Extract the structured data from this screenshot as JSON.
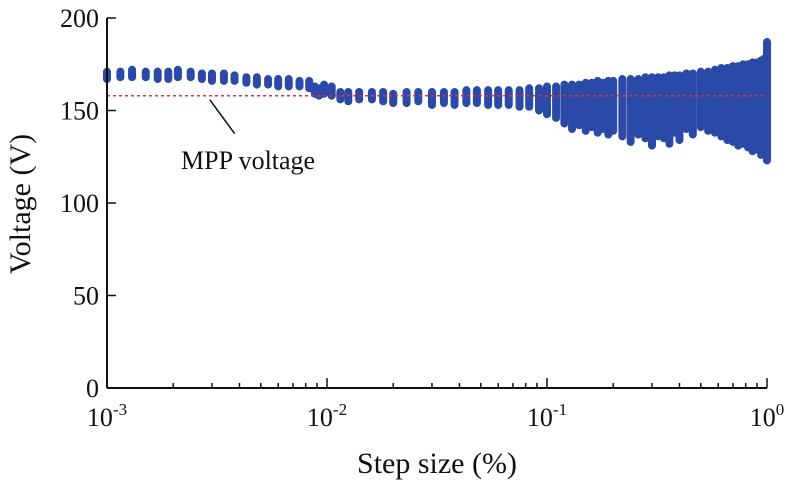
{
  "chart_data": {
    "type": "scatter",
    "title": "",
    "xlabel": "Step size (%)",
    "ylabel": "Voltage (V)",
    "x_scale": "log",
    "xlim": [
      0.001,
      1
    ],
    "ylim": [
      0,
      200
    ],
    "x_ticks": [
      {
        "value": 0.001,
        "base": "10",
        "exp": "-3"
      },
      {
        "value": 0.01,
        "base": "10",
        "exp": "-2"
      },
      {
        "value": 0.1,
        "base": "10",
        "exp": "-1"
      },
      {
        "value": 1,
        "base": "10",
        "exp": "0"
      }
    ],
    "y_ticks": [
      {
        "value": 0,
        "label": "0"
      },
      {
        "value": 50,
        "label": "50"
      },
      {
        "value": 100,
        "label": "100"
      },
      {
        "value": 150,
        "label": "150"
      },
      {
        "value": 200,
        "label": "200"
      }
    ],
    "grid": false,
    "colors": {
      "series": "#2b4aa8",
      "reference": "#e0303a",
      "axis": "#111111"
    },
    "series": [
      {
        "x": [
          0.001,
          0.00115,
          0.0013,
          0.0015,
          0.0017,
          0.0019,
          0.0021,
          0.0024,
          0.0027,
          0.003,
          0.0034,
          0.0038,
          0.0043,
          0.0048,
          0.0054,
          0.006,
          0.0067,
          0.0075,
          0.0083,
          0.0088,
          0.0092,
          0.0097,
          0.0105,
          0.0115,
          0.0125,
          0.014,
          0.016,
          0.018,
          0.02,
          0.023,
          0.026,
          0.03,
          0.034,
          0.038,
          0.043,
          0.048,
          0.054,
          0.06,
          0.067,
          0.075,
          0.083,
          0.092,
          0.1,
          0.11,
          0.12,
          0.13,
          0.14,
          0.15,
          0.16,
          0.17,
          0.18,
          0.19,
          0.2,
          0.22,
          0.24,
          0.26,
          0.28,
          0.3,
          0.32,
          0.34,
          0.36,
          0.38,
          0.4,
          0.43,
          0.46,
          0.5,
          0.54,
          0.58,
          0.62,
          0.66,
          0.7,
          0.74,
          0.78,
          0.82,
          0.86,
          0.9,
          0.94,
          0.97,
          1.0
        ],
        "y_min": [
          167,
          168,
          168,
          168,
          167,
          167,
          168,
          168,
          167,
          166,
          166,
          166,
          165,
          164,
          164,
          163,
          163,
          163,
          162,
          159,
          158,
          159,
          158,
          156,
          155,
          156,
          156,
          155,
          154,
          154,
          155,
          153,
          154,
          153,
          154,
          154,
          153,
          153,
          153,
          152,
          152,
          150,
          148,
          146,
          143,
          140,
          142,
          139,
          141,
          138,
          140,
          137,
          139,
          136,
          133,
          137,
          135,
          131,
          136,
          135,
          132,
          138,
          134,
          140,
          137,
          141,
          139,
          138,
          136,
          134,
          133,
          131,
          132,
          130,
          128,
          129,
          126,
          127,
          123
        ],
        "y_max": [
          171,
          171,
          172,
          171,
          171,
          171,
          172,
          171,
          170,
          170,
          170,
          169,
          168,
          168,
          167,
          167,
          167,
          166,
          166,
          163,
          162,
          164,
          163,
          160,
          160,
          160,
          160,
          160,
          159,
          160,
          160,
          160,
          160,
          160,
          161,
          161,
          161,
          161,
          161,
          161,
          162,
          162,
          163,
          163,
          164,
          164,
          164,
          165,
          165,
          166,
          165,
          166,
          166,
          167,
          167,
          167,
          168,
          168,
          168,
          168,
          169,
          169,
          169,
          170,
          170,
          171,
          171,
          172,
          173,
          173,
          174,
          174,
          175,
          175,
          176,
          176,
          177,
          178,
          187
        ]
      }
    ],
    "reference_line": {
      "y": 158,
      "style": "dotted"
    },
    "annotations": [
      {
        "text": "MPP voltage",
        "points_to": {
          "x": 0.0029,
          "y": 158
        }
      }
    ]
  }
}
